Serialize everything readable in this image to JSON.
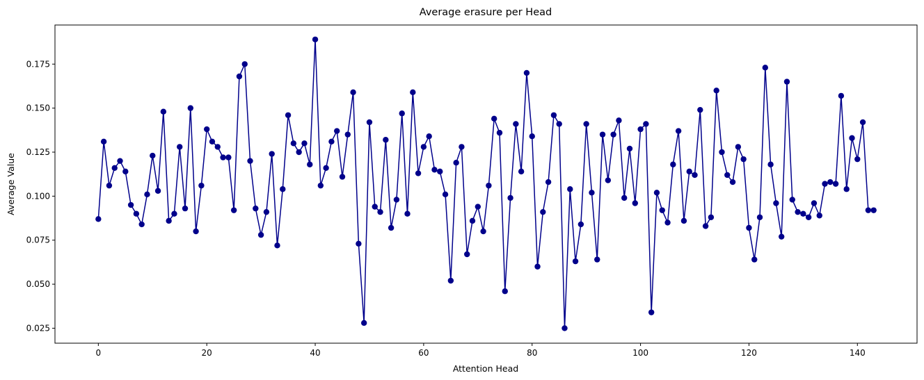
{
  "chart_data": {
    "type": "line",
    "title": "Average erasure per Head",
    "xlabel": "Attention Head",
    "ylabel": "Average Value",
    "xlim": [
      -8,
      151
    ],
    "ylim": [
      0.0165,
      0.1972
    ],
    "xticks": [
      0,
      20,
      40,
      60,
      80,
      100,
      120,
      140
    ],
    "xtick_labels": [
      "0",
      "20",
      "40",
      "60",
      "80",
      "100",
      "120",
      "140"
    ],
    "yticks": [
      0.025,
      0.05,
      0.075,
      0.1,
      0.125,
      0.15,
      0.175
    ],
    "ytick_labels": [
      "0.025",
      "0.050",
      "0.075",
      "0.100",
      "0.125",
      "0.150",
      "0.175"
    ],
    "grid": false,
    "legend": "none",
    "series": [
      {
        "color": "#00008b",
        "marker": "circle",
        "x": [
          0,
          1,
          2,
          3,
          4,
          5,
          6,
          7,
          8,
          9,
          10,
          11,
          12,
          13,
          14,
          15,
          16,
          17,
          18,
          19,
          20,
          21,
          22,
          23,
          24,
          25,
          26,
          27,
          28,
          29,
          30,
          31,
          32,
          33,
          34,
          35,
          36,
          37,
          38,
          39,
          40,
          41,
          42,
          43,
          44,
          45,
          46,
          47,
          48,
          49,
          50,
          51,
          52,
          53,
          54,
          55,
          56,
          57,
          58,
          59,
          60,
          61,
          62,
          63,
          64,
          65,
          66,
          67,
          68,
          69,
          70,
          71,
          72,
          73,
          74,
          75,
          76,
          77,
          78,
          79,
          80,
          81,
          82,
          83,
          84,
          85,
          86,
          87,
          88,
          89,
          90,
          91,
          92,
          93,
          94,
          95,
          96,
          97,
          98,
          99,
          100,
          101,
          102,
          103,
          104,
          105,
          106,
          107,
          108,
          109,
          110,
          111,
          112,
          113,
          114,
          115,
          116,
          117,
          118,
          119,
          120,
          121,
          122,
          123,
          124,
          125,
          126,
          127,
          128,
          129,
          130,
          131,
          132,
          133,
          134,
          135,
          136,
          137,
          138,
          139,
          140,
          141,
          142,
          143
        ],
        "values": [
          0.087,
          0.131,
          0.106,
          0.116,
          0.12,
          0.114,
          0.095,
          0.09,
          0.084,
          0.101,
          0.123,
          0.103,
          0.148,
          0.086,
          0.09,
          0.128,
          0.093,
          0.15,
          0.08,
          0.106,
          0.138,
          0.131,
          0.128,
          0.122,
          0.122,
          0.092,
          0.168,
          0.175,
          0.12,
          0.093,
          0.078,
          0.091,
          0.124,
          0.072,
          0.104,
          0.146,
          0.13,
          0.125,
          0.13,
          0.118,
          0.189,
          0.106,
          0.116,
          0.131,
          0.137,
          0.111,
          0.135,
          0.159,
          0.073,
          0.028,
          0.142,
          0.094,
          0.091,
          0.132,
          0.082,
          0.098,
          0.147,
          0.09,
          0.159,
          0.113,
          0.128,
          0.134,
          0.115,
          0.114,
          0.101,
          0.052,
          0.119,
          0.128,
          0.067,
          0.086,
          0.094,
          0.08,
          0.106,
          0.144,
          0.136,
          0.046,
          0.099,
          0.141,
          0.114,
          0.17,
          0.134,
          0.06,
          0.091,
          0.108,
          0.146,
          0.141,
          0.025,
          0.104,
          0.063,
          0.084,
          0.141,
          0.102,
          0.064,
          0.135,
          0.109,
          0.135,
          0.143,
          0.099,
          0.127,
          0.096,
          0.138,
          0.141,
          0.034,
          0.102,
          0.092,
          0.085,
          0.118,
          0.137,
          0.086,
          0.114,
          0.112,
          0.149,
          0.083,
          0.088,
          0.16,
          0.125,
          0.112,
          0.108,
          0.128,
          0.121,
          0.082,
          0.064,
          0.088,
          0.173,
          0.118,
          0.096,
          0.077,
          0.165,
          0.098,
          0.091,
          0.09,
          0.088,
          0.096,
          0.089,
          0.107,
          0.108,
          0.107,
          0.157,
          0.104,
          0.133,
          0.121,
          0.142,
          0.092,
          0.092
        ]
      }
    ]
  }
}
